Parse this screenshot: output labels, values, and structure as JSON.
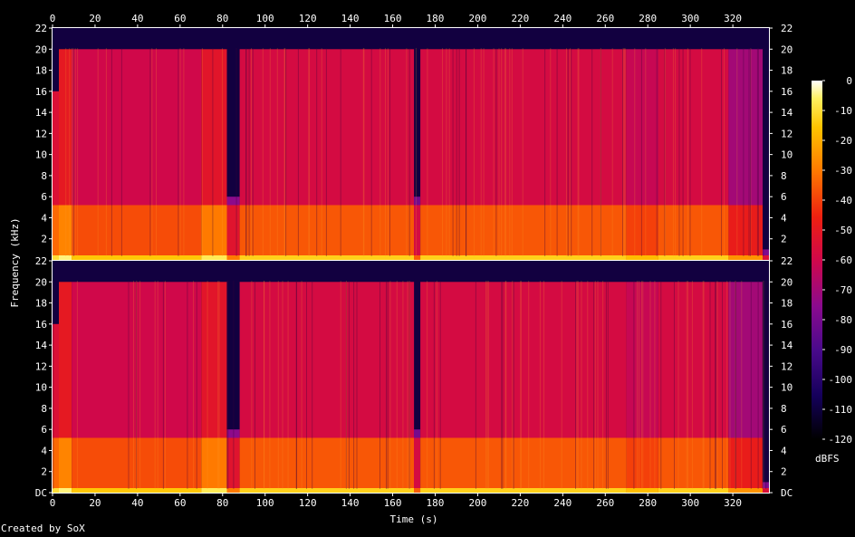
{
  "chart_data": {
    "type": "heatmap",
    "title": "",
    "xlabel": "Time (s)",
    "ylabel": "Frequency (kHz)",
    "xlim": [
      0,
      337
    ],
    "ylim": [
      0,
      22
    ],
    "x_ticks": [
      0,
      20,
      40,
      60,
      80,
      100,
      120,
      140,
      160,
      180,
      200,
      220,
      240,
      260,
      280,
      300,
      320
    ],
    "y_ticks": [
      {
        "value": 0,
        "label": "DC"
      },
      {
        "value": 2,
        "label": "2"
      },
      {
        "value": 4,
        "label": "4"
      },
      {
        "value": 6,
        "label": "6"
      },
      {
        "value": 8,
        "label": "8"
      },
      {
        "value": 10,
        "label": "10"
      },
      {
        "value": 12,
        "label": "12"
      },
      {
        "value": 14,
        "label": "14"
      },
      {
        "value": 16,
        "label": "16"
      },
      {
        "value": 18,
        "label": "18"
      },
      {
        "value": 20,
        "label": "20"
      },
      {
        "value": 22,
        "label": "22"
      }
    ],
    "channels": 2,
    "colorbar": {
      "unit": "dBFS",
      "range": [
        -120,
        0
      ],
      "ticks": [
        0,
        -10,
        -20,
        -30,
        -40,
        -50,
        -60,
        -70,
        -80,
        -90,
        -100,
        -110,
        -120
      ]
    },
    "time_segments": [
      {
        "start": 0,
        "end": 3,
        "cutoff_khz": 16,
        "level_db": -55
      },
      {
        "start": 3,
        "end": 9,
        "cutoff_khz": 20,
        "level_db": -50
      },
      {
        "start": 9,
        "end": 70,
        "cutoff_khz": 20,
        "level_db": -60
      },
      {
        "start": 70,
        "end": 82,
        "cutoff_khz": 20,
        "level_db": -52
      },
      {
        "start": 82,
        "end": 88,
        "cutoff_khz": 6,
        "level_db": -75
      },
      {
        "start": 88,
        "end": 170,
        "cutoff_khz": 20,
        "level_db": -58
      },
      {
        "start": 170,
        "end": 173,
        "cutoff_khz": 6,
        "level_db": -80
      },
      {
        "start": 173,
        "end": 270,
        "cutoff_khz": 20,
        "level_db": -58
      },
      {
        "start": 270,
        "end": 285,
        "cutoff_khz": 20,
        "level_db": -62
      },
      {
        "start": 285,
        "end": 318,
        "cutoff_khz": 20,
        "level_db": -58
      },
      {
        "start": 318,
        "end": 334,
        "cutoff_khz": 20,
        "level_db": -70
      },
      {
        "start": 334,
        "end": 337,
        "cutoff_khz": 1,
        "level_db": -100
      }
    ]
  },
  "footer": {
    "credit": "Created by SoX"
  }
}
